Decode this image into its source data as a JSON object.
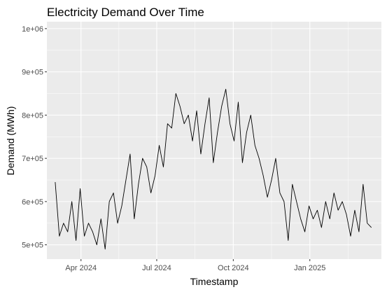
{
  "chart_data": {
    "type": "line",
    "title": "Electricity Demand Over Time",
    "xlabel": "Timestamp",
    "ylabel": "Demand (MWh)",
    "x_ticks": [
      {
        "label": "Apr 2024",
        "date": "2024-04-01"
      },
      {
        "label": "Jul 2024",
        "date": "2024-07-01"
      },
      {
        "label": "Oct 2024",
        "date": "2024-10-01"
      },
      {
        "label": "Jan 2025",
        "date": "2025-01-01"
      }
    ],
    "y_ticks": [
      {
        "label": "5e+05",
        "value": 500000
      },
      {
        "label": "6e+05",
        "value": 600000
      },
      {
        "label": "7e+05",
        "value": 700000
      },
      {
        "label": "8e+05",
        "value": 800000
      },
      {
        "label": "9e+05",
        "value": 900000
      },
      {
        "label": "1e+06",
        "value": 1000000
      }
    ],
    "xlim": [
      "2024-02-20",
      "2025-03-28"
    ],
    "ylim": [
      467000,
      1016000
    ],
    "grid": true,
    "background": "#ebebeb",
    "line_color": "#000000",
    "series": [
      {
        "x": [
          "2024-03-01",
          "2024-03-06",
          "2024-03-11",
          "2024-03-16",
          "2024-03-21",
          "2024-03-26",
          "2024-03-31",
          "2024-04-05",
          "2024-04-10",
          "2024-04-15",
          "2024-04-20",
          "2024-04-25",
          "2024-04-30",
          "2024-05-05",
          "2024-05-10",
          "2024-05-15",
          "2024-05-20",
          "2024-05-25",
          "2024-05-30",
          "2024-06-04",
          "2024-06-09",
          "2024-06-14",
          "2024-06-19",
          "2024-06-24",
          "2024-06-29",
          "2024-07-04",
          "2024-07-09",
          "2024-07-14",
          "2024-07-19",
          "2024-07-24",
          "2024-07-29",
          "2024-08-03",
          "2024-08-08",
          "2024-08-13",
          "2024-08-18",
          "2024-08-23",
          "2024-08-28",
          "2024-09-02",
          "2024-09-07",
          "2024-09-12",
          "2024-09-17",
          "2024-09-22",
          "2024-09-27",
          "2024-10-02",
          "2024-10-07",
          "2024-10-12",
          "2024-10-17",
          "2024-10-22",
          "2024-10-27",
          "2024-11-01",
          "2024-11-06",
          "2024-11-11",
          "2024-11-16",
          "2024-11-21",
          "2024-11-26",
          "2024-12-01",
          "2024-12-06",
          "2024-12-11",
          "2024-12-16",
          "2024-12-21",
          "2024-12-26",
          "2024-12-31",
          "2025-01-05",
          "2025-01-10",
          "2025-01-15",
          "2025-01-20",
          "2025-01-25",
          "2025-01-30",
          "2025-02-04",
          "2025-02-09",
          "2025-02-14",
          "2025-02-19",
          "2025-02-24",
          "2025-03-01",
          "2025-03-06",
          "2025-03-11",
          "2025-03-16"
        ],
        "values": [
          645000,
          520000,
          550000,
          530000,
          600000,
          510000,
          630000,
          520000,
          550000,
          530000,
          500000,
          560000,
          490000,
          600000,
          620000,
          550000,
          590000,
          650000,
          710000,
          560000,
          640000,
          700000,
          680000,
          620000,
          660000,
          730000,
          680000,
          780000,
          770000,
          850000,
          820000,
          780000,
          800000,
          740000,
          810000,
          710000,
          780000,
          840000,
          690000,
          760000,
          820000,
          860000,
          780000,
          740000,
          830000,
          690000,
          760000,
          800000,
          730000,
          700000,
          660000,
          610000,
          650000,
          700000,
          620000,
          600000,
          510000,
          640000,
          600000,
          560000,
          530000,
          590000,
          560000,
          580000,
          540000,
          600000,
          560000,
          620000,
          580000,
          600000,
          570000,
          520000,
          580000,
          530000,
          640000,
          550000,
          540000
        ]
      }
    ]
  }
}
